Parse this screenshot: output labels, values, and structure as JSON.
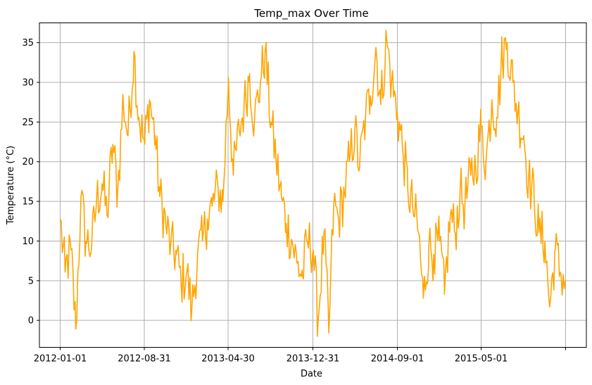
{
  "chart_data": {
    "type": "line",
    "title": "Temp_max Over Time",
    "xlabel": "Date",
    "ylabel": "Temperature (°C)",
    "xlim": [
      "2011-11-02",
      "2016-02-29"
    ],
    "ylim": [
      -3.4,
      37.5
    ],
    "grid": true,
    "legend": "none",
    "x_ticks": [
      {
        "date": "2012-01-01",
        "label": "2012-01-01"
      },
      {
        "date": "2012-08-31",
        "label": "2012-08-31"
      },
      {
        "date": "2013-04-30",
        "label": "2013-04-30"
      },
      {
        "date": "2013-12-31",
        "label": "2013-12-31"
      },
      {
        "date": "2014-09-01",
        "label": "2014-09-01"
      },
      {
        "date": "2015-05-01",
        "label": "2015-05-01"
      },
      {
        "date": "2015-12-31",
        "label": ""
      }
    ],
    "y_ticks": [
      0,
      5,
      10,
      15,
      20,
      25,
      30,
      35
    ],
    "colors": {
      "series": "#FFA500"
    },
    "series": [
      {
        "x": [
          "2012-01-01",
          "2012-01-15",
          "2012-02-01",
          "2012-02-15",
          "2012-03-01",
          "2012-03-15",
          "2012-04-01",
          "2012-04-15",
          "2012-05-01",
          "2012-05-15",
          "2012-06-01",
          "2012-06-15",
          "2012-07-01",
          "2012-07-15",
          "2012-08-01",
          "2012-08-15",
          "2012-09-01",
          "2012-09-15",
          "2012-10-01",
          "2012-10-15",
          "2012-11-01",
          "2012-11-15",
          "2012-12-01",
          "2012-12-15",
          "2013-01-01",
          "2013-01-15",
          "2013-02-01",
          "2013-02-15",
          "2013-03-01",
          "2013-03-15",
          "2013-04-01",
          "2013-04-15",
          "2013-05-01",
          "2013-05-15",
          "2013-06-01",
          "2013-06-15",
          "2013-07-01",
          "2013-07-15",
          "2013-08-01",
          "2013-08-15",
          "2013-09-01",
          "2013-09-15",
          "2013-10-01",
          "2013-10-15",
          "2013-11-01",
          "2013-11-15",
          "2013-12-01",
          "2013-12-15",
          "2014-01-01",
          "2014-01-15",
          "2014-02-01",
          "2014-02-15",
          "2014-03-01",
          "2014-03-15",
          "2014-04-01",
          "2014-04-15",
          "2014-05-01",
          "2014-05-15",
          "2014-06-01",
          "2014-06-15",
          "2014-07-01",
          "2014-07-15",
          "2014-08-01",
          "2014-08-15",
          "2014-09-01",
          "2014-09-15",
          "2014-10-01",
          "2014-10-15",
          "2014-11-01",
          "2014-11-15",
          "2014-12-01",
          "2014-12-15",
          "2015-01-01",
          "2015-01-15",
          "2015-02-01",
          "2015-02-15",
          "2015-03-01",
          "2015-03-15",
          "2015-04-01",
          "2015-04-15",
          "2015-05-01",
          "2015-05-15",
          "2015-06-01",
          "2015-06-15",
          "2015-07-01",
          "2015-07-15",
          "2015-08-01",
          "2015-08-15",
          "2015-09-01",
          "2015-09-15",
          "2015-10-01",
          "2015-10-15",
          "2015-11-01",
          "2015-11-15",
          "2015-12-01",
          "2015-12-15",
          "2015-12-31"
        ],
        "y": [
          12.8,
          6.1,
          8.9,
          -1.1,
          15.6,
          10.0,
          9.4,
          15.0,
          17.2,
          13.3,
          22.2,
          16.1,
          27.8,
          23.3,
          33.9,
          25.6,
          22.2,
          27.8,
          23.3,
          15.6,
          12.2,
          9.4,
          8.3,
          5.0,
          6.1,
          1.1,
          8.3,
          10.0,
          12.8,
          14.4,
          16.7,
          15.0,
          30.6,
          18.3,
          23.9,
          26.7,
          31.1,
          25.0,
          30.0,
          33.9,
          25.0,
          20.6,
          15.6,
          12.2,
          10.0,
          7.2,
          5.6,
          10.0,
          8.9,
          0.0,
          11.1,
          -1.6,
          14.4,
          12.8,
          16.1,
          20.0,
          23.9,
          19.4,
          25.6,
          28.3,
          34.4,
          27.2,
          35.6,
          30.0,
          26.1,
          22.2,
          16.7,
          14.4,
          11.1,
          2.8,
          9.4,
          8.3,
          10.0,
          3.3,
          13.3,
          11.1,
          16.1,
          14.4,
          18.3,
          19.4,
          24.4,
          20.0,
          27.8,
          25.6,
          33.3,
          35.0,
          30.0,
          26.1,
          23.3,
          17.8,
          15.6,
          11.1,
          10.0,
          1.7,
          8.9,
          6.1,
          5.0
        ]
      }
    ]
  }
}
